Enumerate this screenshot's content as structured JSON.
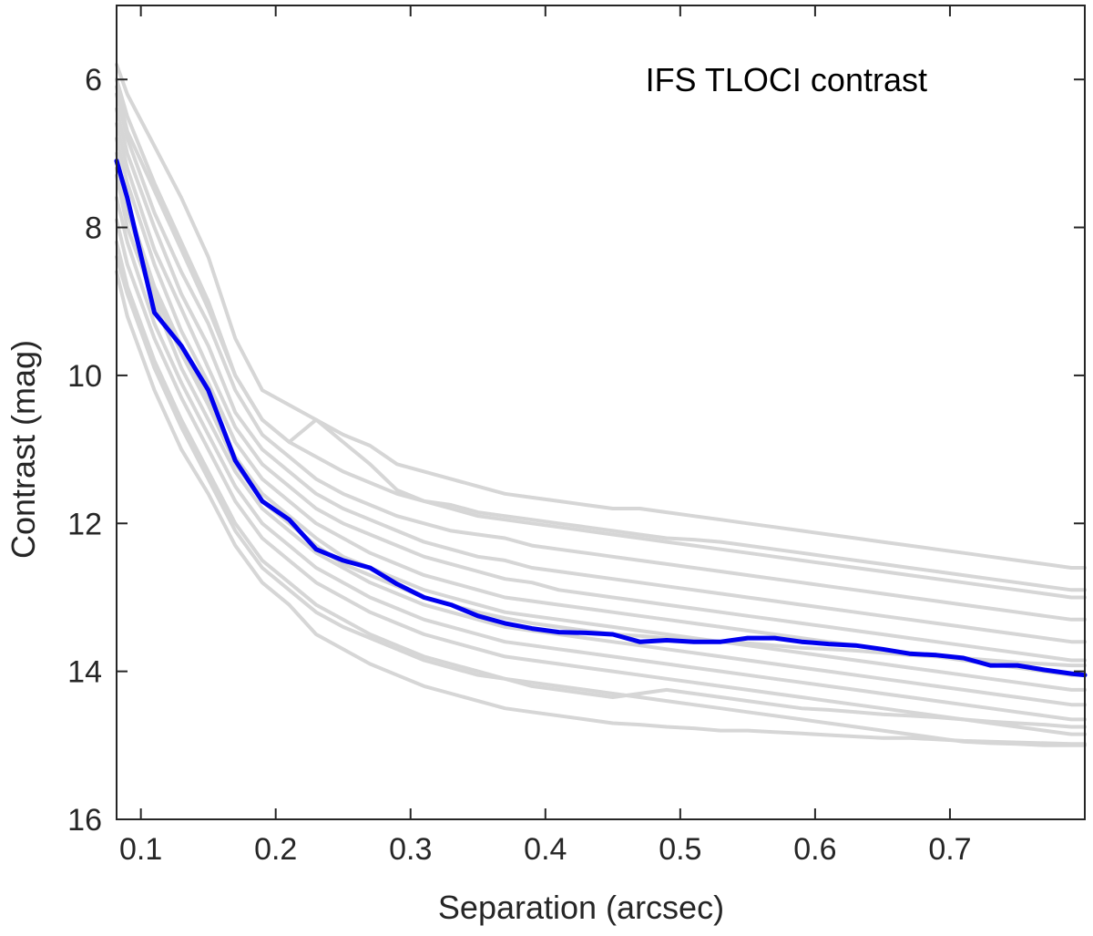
{
  "chart_data": {
    "type": "line",
    "title": "IFS TLOCI contrast",
    "xlabel": "Separation (arcsec)",
    "ylabel": "Contrast (mag)",
    "xlim": [
      0.082,
      0.8
    ],
    "ylim": [
      5,
      16
    ],
    "y_reversed": true,
    "grid": false,
    "x_ticks": [
      0.1,
      0.2,
      0.3,
      0.4,
      0.5,
      0.6,
      0.7
    ],
    "x_tick_labels": [
      "0.1",
      "0.2",
      "0.3",
      "0.4",
      "0.5",
      "0.6",
      "0.7"
    ],
    "y_ticks": [
      6,
      8,
      10,
      12,
      14,
      16
    ],
    "y_tick_labels": [
      "6",
      "8",
      "10",
      "12",
      "14",
      "16"
    ],
    "colors": {
      "highlight": "#0000ee",
      "background_series": "#d6d6d6",
      "axes": "#262626"
    },
    "x": [
      0.082,
      0.09,
      0.11,
      0.13,
      0.15,
      0.17,
      0.19,
      0.21,
      0.23,
      0.25,
      0.27,
      0.29,
      0.31,
      0.33,
      0.35,
      0.37,
      0.39,
      0.41,
      0.43,
      0.45,
      0.47,
      0.49,
      0.51,
      0.53,
      0.55,
      0.57,
      0.59,
      0.61,
      0.63,
      0.65,
      0.67,
      0.69,
      0.71,
      0.73,
      0.75,
      0.77,
      0.79,
      0.8
    ],
    "highlight_series": {
      "name": "median",
      "values": [
        7.1,
        7.6,
        9.15,
        9.6,
        10.2,
        11.15,
        11.7,
        11.95,
        12.35,
        12.5,
        12.6,
        12.82,
        13.0,
        13.1,
        13.25,
        13.35,
        13.42,
        13.47,
        13.48,
        13.5,
        13.6,
        13.58,
        13.6,
        13.6,
        13.55,
        13.55,
        13.6,
        13.63,
        13.65,
        13.7,
        13.76,
        13.78,
        13.82,
        13.92,
        13.92,
        13.98,
        14.03,
        14.05
      ]
    },
    "background_series": [
      {
        "values": [
          5.8,
          6.2,
          6.9,
          7.6,
          8.4,
          9.5,
          10.2,
          10.4,
          10.6,
          10.8,
          10.95,
          11.2,
          11.3,
          11.4,
          11.5,
          11.6,
          11.65,
          11.7,
          11.75,
          11.8,
          11.8,
          11.85,
          11.9,
          11.95,
          12.0,
          12.05,
          12.1,
          12.15,
          12.2,
          12.25,
          12.3,
          12.35,
          12.4,
          12.45,
          12.5,
          12.55,
          12.6,
          12.6
        ]
      },
      {
        "values": [
          6.0,
          6.5,
          7.4,
          8.2,
          9.0,
          10.0,
          10.6,
          10.9,
          11.1,
          11.3,
          11.45,
          11.6,
          11.7,
          11.8,
          11.9,
          11.95,
          12.0,
          12.05,
          12.1,
          12.15,
          12.2,
          12.25,
          12.3,
          12.35,
          12.4,
          12.45,
          12.5,
          12.55,
          12.6,
          12.65,
          12.7,
          12.75,
          12.8,
          12.85,
          12.9,
          12.95,
          13.0,
          13.0
        ]
      },
      {
        "values": [
          6.2,
          6.8,
          7.8,
          8.6,
          9.3,
          10.2,
          10.8,
          11.1,
          11.4,
          11.6,
          11.75,
          11.9,
          12.0,
          12.1,
          12.15,
          12.2,
          12.3,
          12.35,
          12.4,
          12.45,
          12.5,
          12.55,
          12.6,
          12.65,
          12.7,
          12.75,
          12.8,
          12.85,
          12.9,
          12.95,
          13.0,
          13.05,
          13.1,
          13.15,
          13.2,
          13.25,
          13.3,
          13.3
        ]
      },
      {
        "values": [
          6.4,
          7.0,
          8.0,
          8.9,
          9.6,
          10.5,
          11.0,
          11.3,
          11.6,
          11.8,
          11.95,
          12.1,
          12.25,
          12.35,
          12.45,
          12.5,
          12.6,
          12.65,
          12.7,
          12.75,
          12.8,
          12.85,
          12.9,
          12.95,
          13.0,
          13.05,
          13.1,
          13.15,
          13.2,
          13.25,
          13.3,
          13.35,
          13.4,
          13.45,
          13.5,
          13.55,
          13.6,
          13.6
        ]
      },
      {
        "values": [
          6.6,
          7.2,
          8.3,
          9.1,
          9.9,
          10.7,
          11.2,
          11.5,
          11.8,
          12.0,
          12.15,
          12.3,
          12.45,
          12.55,
          12.65,
          12.75,
          12.8,
          12.9,
          12.95,
          13.0,
          13.05,
          13.1,
          13.15,
          13.2,
          13.25,
          13.3,
          13.35,
          13.4,
          13.45,
          13.5,
          13.55,
          13.6,
          13.65,
          13.7,
          13.75,
          13.8,
          13.85,
          13.85
        ]
      },
      {
        "values": [
          6.8,
          7.4,
          8.5,
          9.4,
          10.1,
          10.9,
          11.4,
          11.7,
          12.0,
          12.2,
          12.4,
          12.55,
          12.7,
          12.8,
          12.9,
          13.0,
          13.05,
          13.1,
          13.15,
          13.2,
          13.25,
          13.3,
          13.35,
          13.4,
          13.45,
          13.5,
          13.55,
          13.6,
          13.65,
          13.7,
          13.75,
          13.8,
          13.85,
          13.9,
          13.95,
          14.0,
          14.05,
          14.05
        ]
      },
      {
        "values": [
          7.0,
          7.7,
          8.8,
          9.6,
          10.3,
          11.1,
          11.6,
          11.9,
          12.2,
          12.45,
          12.6,
          12.75,
          12.9,
          13.0,
          13.1,
          13.2,
          13.25,
          13.3,
          13.35,
          13.4,
          13.45,
          13.5,
          13.55,
          13.6,
          13.65,
          13.7,
          13.75,
          13.8,
          13.85,
          13.9,
          13.95,
          14.0,
          14.05,
          14.1,
          14.15,
          14.2,
          14.25,
          14.25
        ]
      },
      {
        "values": [
          7.3,
          8.0,
          9.0,
          9.9,
          10.6,
          11.3,
          11.8,
          12.1,
          12.4,
          12.6,
          12.8,
          12.95,
          13.1,
          13.2,
          13.3,
          13.4,
          13.45,
          13.5,
          13.55,
          13.6,
          13.65,
          13.7,
          13.75,
          13.8,
          13.85,
          13.9,
          13.95,
          14.0,
          14.05,
          14.1,
          14.15,
          14.2,
          14.25,
          14.3,
          14.35,
          14.4,
          14.45,
          14.45
        ]
      },
      {
        "values": [
          7.6,
          8.2,
          9.3,
          10.1,
          10.8,
          11.5,
          12.0,
          12.3,
          12.6,
          12.8,
          13.0,
          13.15,
          13.3,
          13.4,
          13.5,
          13.6,
          13.65,
          13.7,
          13.75,
          13.8,
          13.85,
          13.9,
          13.95,
          14.0,
          14.05,
          14.1,
          14.15,
          14.2,
          14.25,
          14.3,
          14.35,
          14.4,
          14.45,
          14.5,
          14.55,
          14.6,
          14.65,
          14.65
        ]
      },
      {
        "values": [
          7.9,
          8.5,
          9.5,
          10.3,
          11.0,
          11.7,
          12.2,
          12.5,
          12.8,
          13.0,
          13.2,
          13.35,
          13.5,
          13.6,
          13.7,
          13.8,
          13.85,
          13.9,
          13.95,
          14.0,
          14.05,
          14.1,
          14.15,
          14.2,
          14.25,
          14.3,
          14.35,
          14.4,
          14.45,
          14.5,
          14.55,
          14.6,
          14.65,
          14.7,
          14.75,
          14.8,
          14.85,
          14.85
        ]
      },
      {
        "values": [
          8.2,
          8.8,
          9.8,
          10.6,
          11.3,
          12.0,
          12.5,
          12.8,
          13.1,
          13.3,
          13.5,
          13.65,
          13.8,
          13.9,
          14.0,
          14.1,
          14.15,
          14.2,
          14.25,
          14.3,
          14.35,
          14.4,
          14.45,
          14.5,
          14.55,
          14.6,
          14.65,
          14.7,
          14.75,
          14.8,
          14.85,
          14.9,
          14.95,
          14.97,
          14.98,
          15.0,
          15.0,
          15.0
        ]
      },
      {
        "values": [
          8.6,
          9.2,
          10.2,
          11.0,
          11.6,
          12.3,
          12.8,
          13.1,
          13.5,
          13.7,
          13.9,
          14.05,
          14.2,
          14.3,
          14.4,
          14.5,
          14.55,
          14.6,
          14.65,
          14.7,
          14.72,
          14.75,
          14.77,
          14.8,
          14.8,
          14.82,
          14.84,
          14.86,
          14.88,
          14.9,
          14.9,
          14.92,
          14.94,
          14.95,
          14.96,
          14.97,
          14.98,
          14.98
        ]
      },
      {
        "values": [
          6.1,
          6.7,
          7.5,
          8.3,
          9.1,
          10.0,
          10.6,
          10.9,
          10.6,
          10.9,
          11.2,
          11.55,
          11.7,
          11.75,
          11.85,
          11.9,
          11.95,
          12.0,
          12.05,
          12.1,
          12.15,
          12.2,
          12.22,
          12.25,
          12.3,
          12.35,
          12.4,
          12.45,
          12.5,
          12.55,
          12.6,
          12.65,
          12.7,
          12.75,
          12.8,
          12.85,
          12.9,
          12.9
        ]
      },
      {
        "values": [
          8.4,
          8.9,
          9.9,
          10.7,
          11.4,
          12.1,
          12.6,
          12.9,
          13.2,
          13.4,
          13.55,
          13.7,
          13.85,
          13.95,
          14.05,
          14.1,
          14.2,
          14.25,
          14.3,
          14.35,
          14.3,
          14.25,
          14.3,
          14.35,
          14.4,
          14.45,
          14.5,
          14.52,
          14.55,
          14.58,
          14.6,
          14.62,
          14.65,
          14.68,
          14.7,
          14.72,
          14.75,
          14.75
        ]
      },
      {
        "values": [
          7.2,
          7.8,
          8.9,
          9.7,
          10.4,
          11.2,
          11.7,
          12.0,
          12.3,
          12.55,
          12.7,
          12.85,
          13.0,
          13.1,
          13.2,
          13.28,
          13.35,
          13.4,
          13.45,
          13.5,
          13.52,
          13.55,
          13.58,
          13.6,
          13.62,
          13.65,
          13.68,
          13.7,
          13.72,
          13.75,
          13.78,
          13.8,
          13.82,
          13.85,
          13.88,
          13.9,
          13.92,
          13.92
        ]
      }
    ]
  }
}
